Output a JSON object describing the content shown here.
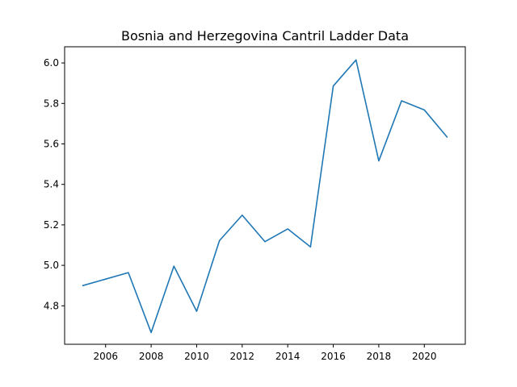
{
  "chart_data": {
    "type": "line",
    "title": "Bosnia and Herzegovina Cantril Ladder Data",
    "xlabel": "",
    "ylabel": "",
    "x": [
      2005,
      2007,
      2008,
      2009,
      2010,
      2011,
      2012,
      2013,
      2014,
      2015,
      2016,
      2017,
      2018,
      2019,
      2020,
      2021
    ],
    "series": [
      {
        "values": [
          4.9,
          4.964,
          4.668,
          4.996,
          4.773,
          5.122,
          5.248,
          5.117,
          5.18,
          5.091,
          5.886,
          6.015,
          5.516,
          5.813,
          5.768,
          5.634
        ],
        "color": "#1f77b4"
      }
    ],
    "xlim": [
      2004.2,
      2021.8
    ],
    "ylim": [
      4.61,
      6.08
    ],
    "xticks": [
      2006,
      2008,
      2010,
      2012,
      2014,
      2016,
      2018,
      2020
    ],
    "xtick_labels": [
      "2006",
      "2008",
      "2010",
      "2012",
      "2014",
      "2016",
      "2018",
      "2020"
    ],
    "yticks": [
      4.8,
      5.0,
      5.2,
      5.4,
      5.6,
      5.8,
      6.0
    ],
    "ytick_labels": [
      "4.8",
      "5.0",
      "5.2",
      "5.4",
      "5.6",
      "5.8",
      "6.0"
    ],
    "grid": false,
    "legend": "none"
  }
}
